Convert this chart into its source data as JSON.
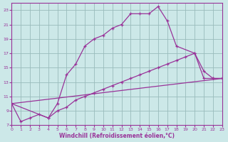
{
  "xlabel": "Windchill (Refroidissement éolien,°C)",
  "background_color": "#cce8e8",
  "line_color": "#993399",
  "grid_color": "#99bbbb",
  "xlim": [
    0,
    23
  ],
  "ylim": [
    7,
    24
  ],
  "xticks": [
    0,
    1,
    2,
    3,
    4,
    5,
    6,
    7,
    8,
    9,
    10,
    11,
    12,
    13,
    14,
    15,
    16,
    17,
    18,
    19,
    20,
    21,
    22,
    23
  ],
  "yticks": [
    7,
    9,
    11,
    13,
    15,
    17,
    19,
    21,
    23
  ],
  "curve1_x": [
    0,
    1,
    2,
    3,
    4,
    5,
    6,
    7,
    8,
    9,
    10,
    11,
    12,
    13,
    14,
    15,
    16,
    17,
    18,
    20,
    21,
    22,
    23
  ],
  "curve1_y": [
    10,
    7.5,
    8,
    8.5,
    8,
    10,
    14,
    15.5,
    18,
    19,
    19.5,
    20.5,
    21,
    22.5,
    22.5,
    22.5,
    23.5,
    21.5,
    18,
    17,
    14.5,
    13.5,
    13.5
  ],
  "curve2_x": [
    0,
    4,
    5,
    6,
    7,
    8,
    9,
    10,
    11,
    12,
    13,
    14,
    15,
    16,
    17,
    18,
    19,
    20,
    21,
    22,
    23
  ],
  "curve2_y": [
    10,
    8,
    9,
    9.5,
    10.5,
    11,
    11.5,
    12,
    12.5,
    13,
    13.5,
    14,
    14.5,
    15,
    15.5,
    16,
    16.5,
    17,
    13.5,
    13.5,
    13.5
  ],
  "curve3_x": [
    0,
    23
  ],
  "curve3_y": [
    10,
    13.5
  ]
}
